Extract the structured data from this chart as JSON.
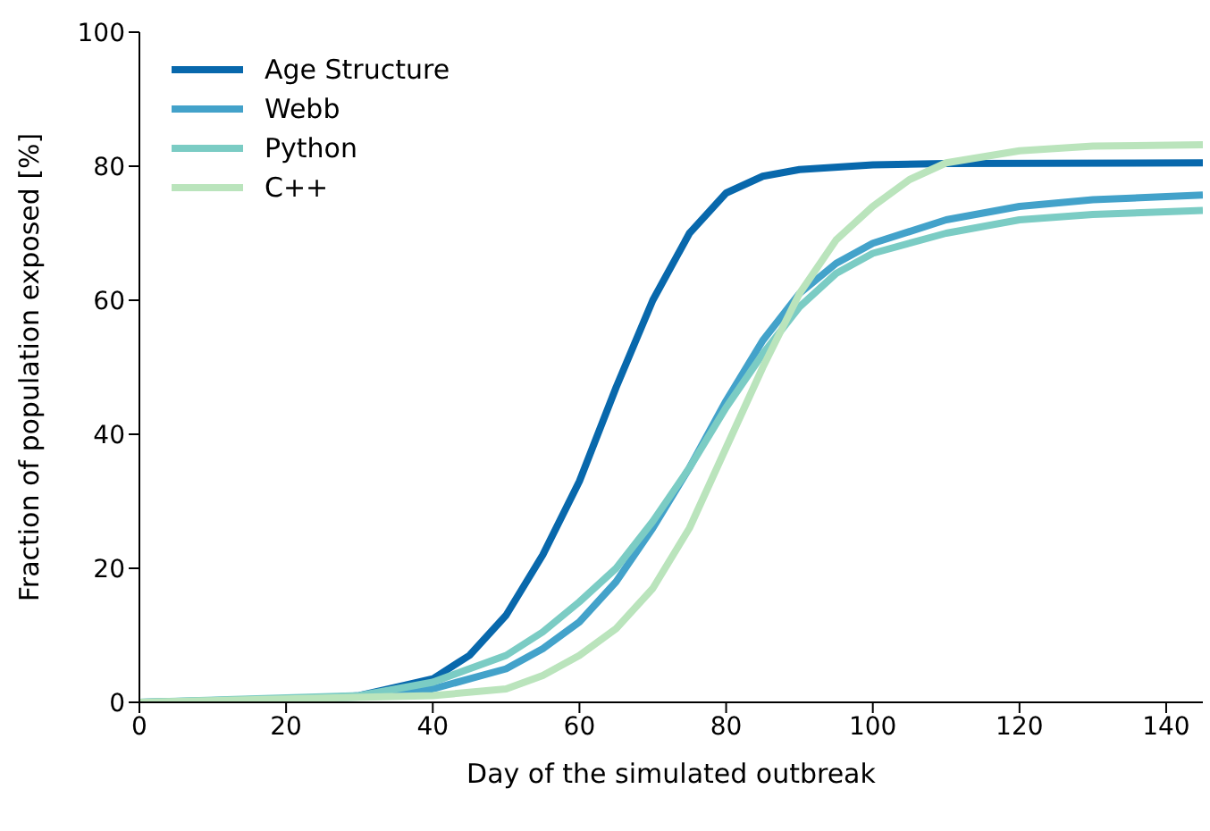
{
  "chart_data": {
    "type": "line",
    "xlabel": "Day of the simulated outbreak",
    "ylabel": "Fraction of population exposed [%]",
    "xlim": [
      0,
      145
    ],
    "xticks": [
      0,
      20,
      40,
      60,
      80,
      100,
      120,
      140
    ],
    "ylim": [
      0,
      100
    ],
    "yticks": [
      0,
      20,
      40,
      60,
      80,
      100
    ],
    "grid": false,
    "legend": "top left",
    "marker": "none",
    "line_style": "solid",
    "series": [
      {
        "name": "Age Structure",
        "color": "#0868ac",
        "x": [
          0,
          20,
          30,
          40,
          45,
          50,
          55,
          60,
          65,
          70,
          75,
          80,
          85,
          90,
          100,
          110,
          145
        ],
        "values": [
          0,
          0.3,
          1,
          3.5,
          7,
          13,
          22,
          33,
          47,
          60,
          70,
          76,
          78.5,
          79.5,
          80.2,
          80.4,
          80.5
        ]
      },
      {
        "name": "Webb",
        "color": "#43a2ca",
        "x": [
          0,
          30,
          40,
          50,
          55,
          60,
          65,
          70,
          75,
          80,
          85,
          90,
          95,
          100,
          110,
          120,
          130,
          145
        ],
        "values": [
          0,
          0.8,
          2,
          5,
          8,
          12,
          18,
          26,
          35,
          45,
          54,
          61,
          65.5,
          68.5,
          72,
          74,
          75,
          75.7
        ]
      },
      {
        "name": "Python",
        "color": "#7bccc4",
        "x": [
          0,
          30,
          40,
          50,
          55,
          60,
          65,
          70,
          75,
          80,
          85,
          90,
          95,
          100,
          110,
          120,
          130,
          145
        ],
        "values": [
          0,
          1,
          3,
          7,
          10.5,
          15,
          20,
          27,
          35,
          44,
          52,
          59,
          64,
          67,
          70,
          72,
          72.8,
          73.4
        ]
      },
      {
        "name": "C++",
        "color": "#bae4bc",
        "x": [
          0,
          40,
          50,
          55,
          60,
          65,
          70,
          75,
          80,
          85,
          90,
          95,
          100,
          105,
          110,
          120,
          130,
          145
        ],
        "values": [
          0,
          1,
          2,
          4,
          7,
          11,
          17,
          26,
          38,
          50,
          61,
          69,
          74,
          78,
          80.5,
          82.3,
          83,
          83.2
        ]
      }
    ]
  }
}
